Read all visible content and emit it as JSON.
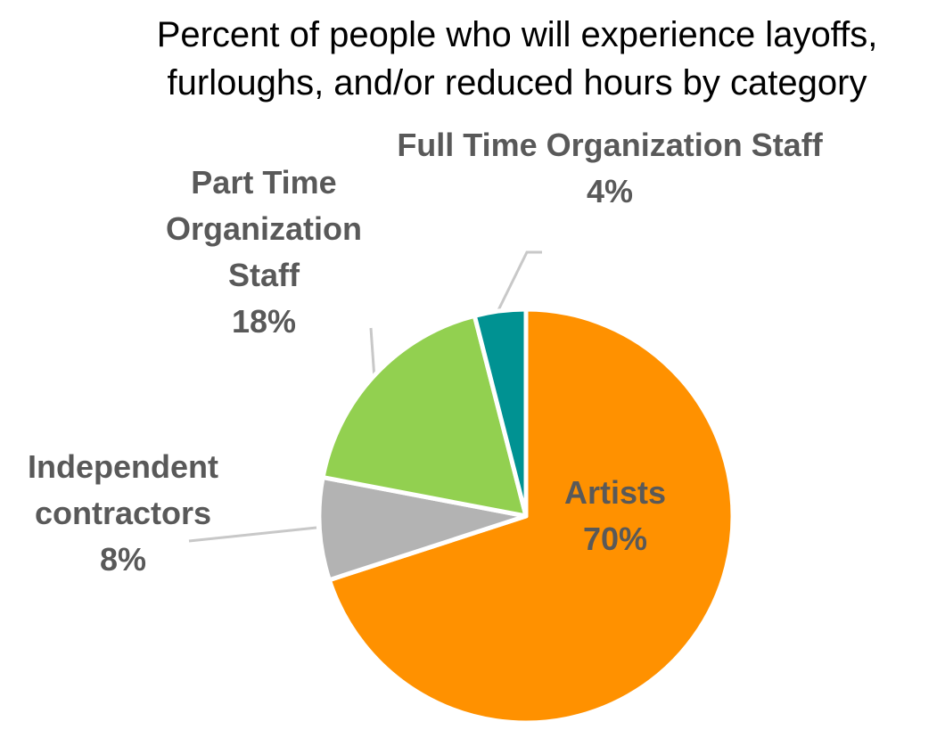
{
  "chart_data": {
    "type": "pie",
    "title_lines": [
      "Percent of people who will experience layoffs,",
      "furloughs, and/or reduced hours by category"
    ],
    "slices": [
      {
        "label_lines": [
          "Artists"
        ],
        "value": 70,
        "value_label": "70%",
        "color": "#FF9100"
      },
      {
        "label_lines": [
          "Independent",
          "contractors"
        ],
        "value": 8,
        "value_label": "8%",
        "color": "#B3B3B3"
      },
      {
        "label_lines": [
          "Part Time",
          "Organization",
          "Staff"
        ],
        "value": 18,
        "value_label": "18%",
        "color": "#92D050"
      },
      {
        "label_lines": [
          "Full Time Organization Staff"
        ],
        "value": 4,
        "value_label": "4%",
        "color": "#009292"
      }
    ],
    "start_angle_deg": 0,
    "direction": "clockwise",
    "label_color": "#595959",
    "leader_line_color": "#C8C8C8",
    "legend": "none"
  }
}
